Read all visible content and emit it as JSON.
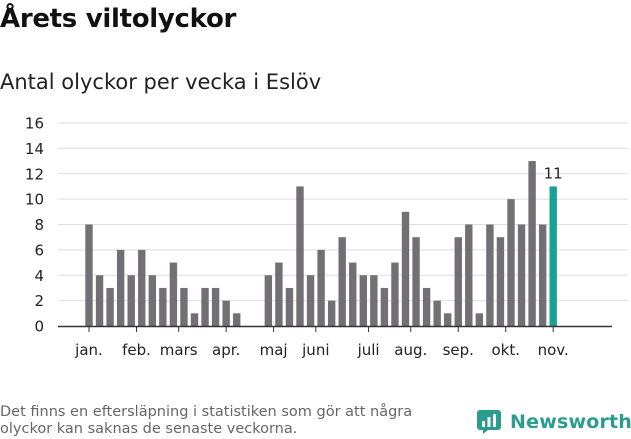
{
  "title": "Årets viltolyckor",
  "subtitle": "Antal olyckor per vecka i Eslöv",
  "footnote": "Det finns en eftersläpning i statistiken som gör att några olyckor kan saknas de senaste veckorna.",
  "brand": {
    "name": "Newsworthy",
    "icon": "newsworthy-logo-icon",
    "color": "#2a9d8f"
  },
  "colors": {
    "bar": "#727075",
    "highlight": "#1aa196",
    "grid": "#dddddd",
    "axis": "#333333"
  },
  "chart_data": {
    "type": "bar",
    "title": "Antal olyckor per vecka i Eslöv",
    "xlabel": "",
    "ylabel": "",
    "ylim": [
      0,
      16
    ],
    "yticks": [
      0,
      2,
      4,
      6,
      8,
      10,
      12,
      14,
      16
    ],
    "grid": true,
    "x_start_week": 1,
    "series": [
      {
        "values": [
          8,
          4,
          3,
          6,
          4,
          6,
          4,
          3,
          5,
          3,
          1,
          3,
          3,
          2,
          1,
          0,
          0,
          4,
          5,
          3,
          11,
          4,
          6,
          2,
          7,
          5,
          4,
          4,
          3,
          5,
          9,
          7,
          3,
          2,
          1,
          7,
          8,
          1,
          8,
          7,
          10,
          8,
          13,
          8,
          11
        ]
      }
    ],
    "highlight_index": 44,
    "data_labels": [
      {
        "index": 44,
        "text": "11"
      }
    ],
    "month_ticks": [
      {
        "label": "jan.",
        "week": 1
      },
      {
        "label": "feb.",
        "week": 5.5
      },
      {
        "label": "mars",
        "week": 9.5
      },
      {
        "label": "apr.",
        "week": 14
      },
      {
        "label": "maj",
        "week": 18.5
      },
      {
        "label": "juni",
        "week": 22.5
      },
      {
        "label": "juli",
        "week": 27.5
      },
      {
        "label": "aug.",
        "week": 31.5
      },
      {
        "label": "sep.",
        "week": 36
      },
      {
        "label": "okt.",
        "week": 40.5
      },
      {
        "label": "nov.",
        "week": 45
      }
    ]
  }
}
